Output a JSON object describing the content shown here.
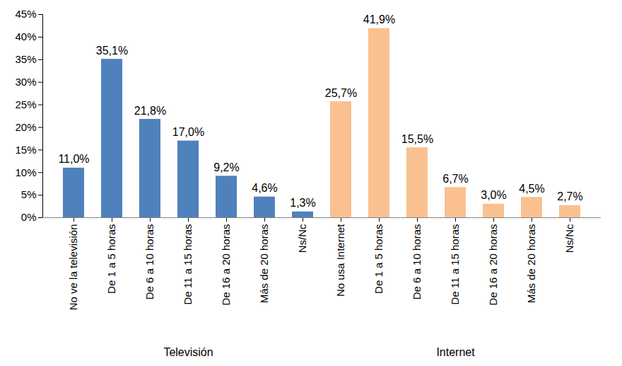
{
  "chart_data": {
    "type": "bar",
    "series": [
      {
        "name": "Televisión",
        "color": "#4F81BD",
        "categories": [
          "No ve la televisión",
          "De 1 a 5 horas",
          "De 6 a 10 horas",
          "De 11 a 15 horas",
          "De 16 a 20 horas",
          "Más de 20 horas",
          "Ns/Nc"
        ],
        "values": [
          11.0,
          35.1,
          21.8,
          17.0,
          9.2,
          4.6,
          1.3
        ],
        "value_labels": [
          "11,0%",
          "35,1%",
          "21,8%",
          "17,0%",
          "9,2%",
          "4,6%",
          "1,3%"
        ]
      },
      {
        "name": "Internet",
        "color": "#FAC090",
        "categories": [
          "No usa Internet",
          "De 1 a 5 horas",
          "De 6 a 10 horas",
          "De 11 a 15 horas",
          "De 16 a 20 horas",
          "Más de 20 horas",
          "Ns/Nc"
        ],
        "values": [
          25.7,
          41.9,
          15.5,
          6.7,
          3.0,
          4.5,
          2.7
        ],
        "value_labels": [
          "25,7%",
          "41,9%",
          "15,5%",
          "6,7%",
          "3,0%",
          "4,5%",
          "2,7%"
        ]
      }
    ],
    "ylim": [
      0,
      45
    ],
    "yticks": [
      {
        "value": 0,
        "label": "0%"
      },
      {
        "value": 5,
        "label": "5%"
      },
      {
        "value": 10,
        "label": "10%"
      },
      {
        "value": 15,
        "label": "15%"
      },
      {
        "value": 20,
        "label": "20%"
      },
      {
        "value": 25,
        "label": "25%"
      },
      {
        "value": 30,
        "label": "30%"
      },
      {
        "value": 35,
        "label": "35%"
      },
      {
        "value": 40,
        "label": "40%"
      },
      {
        "value": 45,
        "label": "45%"
      }
    ],
    "grid": false,
    "data_labels": true
  }
}
